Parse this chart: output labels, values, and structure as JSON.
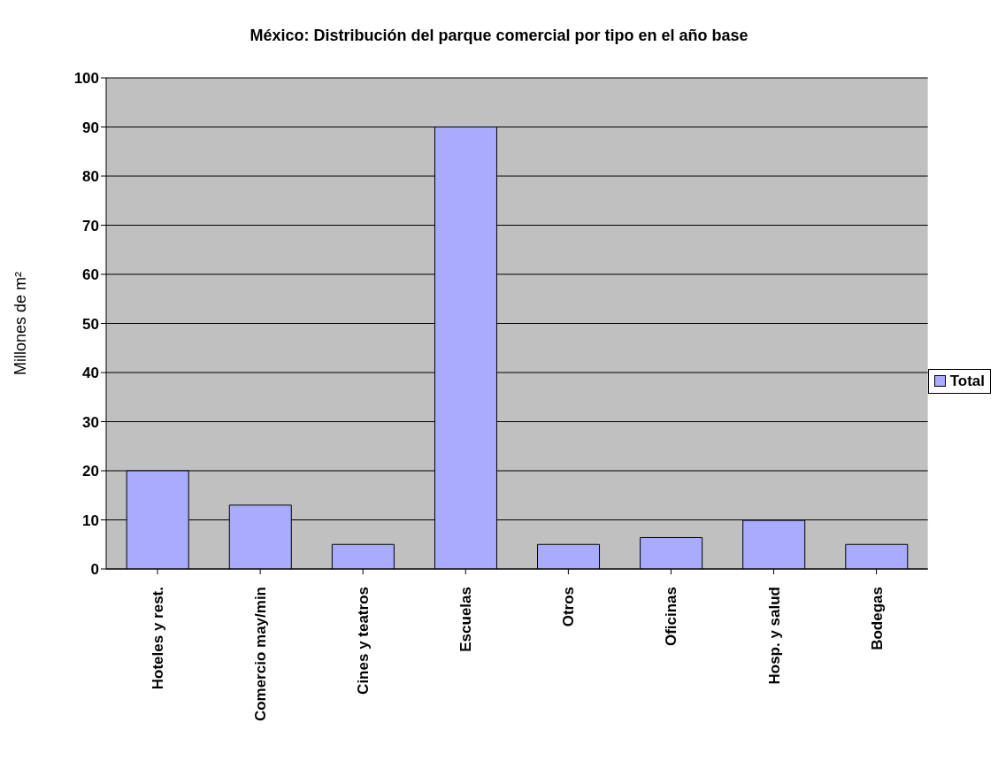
{
  "chart_data": {
    "type": "bar",
    "title": "México: Distribución del parque comercial por tipo en el año base",
    "ylabel": "Millones de m²",
    "categories": [
      "Hoteles y rest.",
      "Comercio may/min",
      "Cines y teatros",
      "Escuelas",
      "Otros",
      "Oficinas",
      "Hosp. y salud",
      "Bodegas"
    ],
    "series": [
      {
        "name": "Total",
        "color": "#a9abff",
        "values": [
          20,
          13,
          5,
          90,
          5,
          6.4,
          9.9,
          5
        ]
      }
    ],
    "ylim": [
      0,
      100
    ],
    "yticks": [
      0,
      10,
      20,
      30,
      40,
      50,
      60,
      70,
      80,
      90,
      100
    ],
    "grid": "y",
    "legend": "right"
  }
}
